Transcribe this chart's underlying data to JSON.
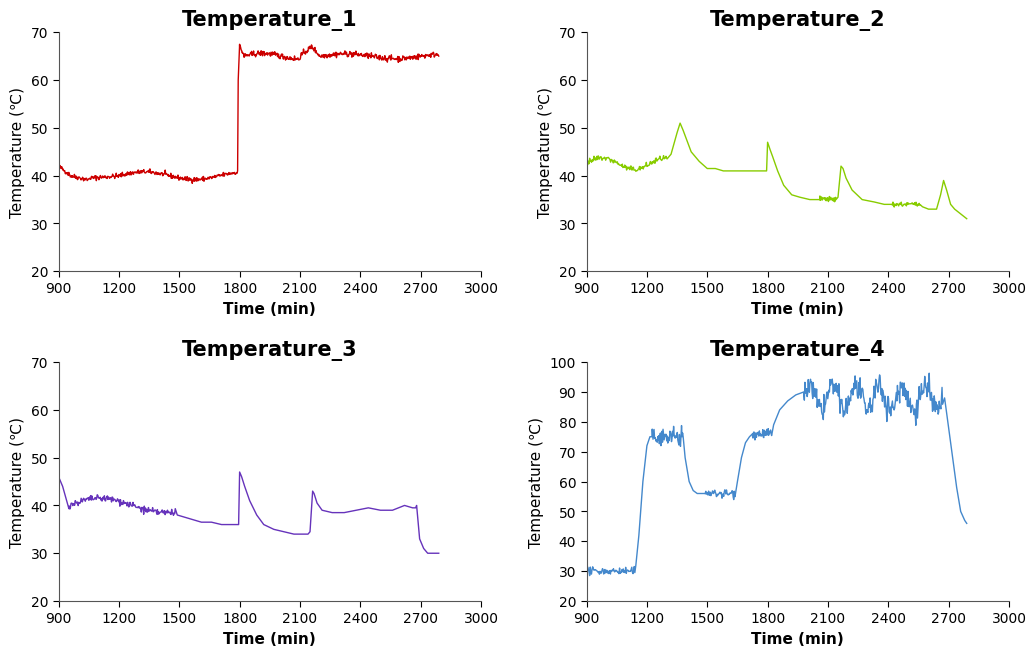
{
  "titles": [
    "Temperature_1",
    "Temperature_2",
    "Temperature_3",
    "Temperature_4"
  ],
  "colors": [
    "#cc0000",
    "#88cc00",
    "#6633bb",
    "#4488cc"
  ],
  "xlabel": "Time (min)",
  "ylabel": "Temperature (℃)",
  "xlim": [
    900,
    3000
  ],
  "xticks": [
    900,
    1200,
    1500,
    1800,
    2100,
    2400,
    2700,
    3000
  ],
  "ylim_default": [
    20,
    70
  ],
  "ylim_t4": [
    20,
    100
  ],
  "yticks_default": [
    20,
    30,
    40,
    50,
    60,
    70
  ],
  "yticks_t4": [
    20,
    30,
    40,
    50,
    60,
    70,
    80,
    90,
    100
  ],
  "title_fontsize": 15,
  "axis_fontsize": 11,
  "tick_fontsize": 10,
  "linewidth": 1.0,
  "background_color": "#ffffff",
  "panel_background": "#ffffff"
}
